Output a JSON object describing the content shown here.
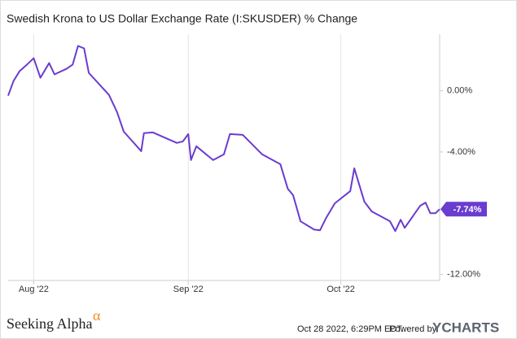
{
  "chart_data": {
    "type": "line",
    "title": "Swedish Krona to US Dollar Exchange Rate (I:SKUSDER) % Change",
    "x": [
      0,
      0.8,
      1.7,
      2.8,
      3.8,
      4.8,
      6.1,
      6.9,
      8.7,
      9.6,
      10.4,
      11.3,
      12,
      15,
      16.2,
      17.2,
      19.8,
      20.2,
      21.5,
      25.1,
      26,
      26.8,
      27.2,
      28,
      30.5,
      32.1,
      33,
      34.9,
      37.8,
      40.5,
      41.6,
      42.4,
      43.5,
      45.5,
      46.4,
      47.3,
      48.6,
      50.9,
      51.5,
      53,
      54.1,
      56.8,
      57.6,
      58.4,
      59,
      61.3,
      62.1,
      62.8,
      63.6,
      64.2
    ],
    "series": [
      {
        "name": "I:SKUSDER",
        "color": "#6a3ccf",
        "values": [
          -0.32,
          0.64,
          1.28,
          1.71,
          2.13,
          0.85,
          1.81,
          1.07,
          1.44,
          1.71,
          2.93,
          2.77,
          1.17,
          -0.27,
          -1.39,
          -2.67,
          -3.95,
          -2.77,
          -2.72,
          -3.41,
          -3.31,
          -2.83,
          -4.53,
          -3.63,
          -4.53,
          -4.16,
          -2.83,
          -2.88,
          -4.16,
          -4.8,
          -6.4,
          -6.83,
          -8.53,
          -9.07,
          -9.12,
          -8.32,
          -7.36,
          -6.56,
          -5.07,
          -7.25,
          -7.89,
          -8.53,
          -9.17,
          -8.43,
          -8.96,
          -7.52,
          -7.31,
          -8.0,
          -8.0,
          -7.74
        ],
        "value_labels": [
          null,
          null,
          null,
          null,
          null,
          null,
          null,
          null,
          null,
          null,
          null,
          null,
          null,
          null,
          null,
          null,
          null,
          null,
          null,
          null,
          null,
          null,
          null,
          null,
          null,
          null,
          null,
          null,
          null,
          null,
          null,
          null,
          null,
          null,
          null,
          null,
          null,
          null,
          null,
          null,
          null,
          null,
          null,
          null,
          null,
          null,
          null,
          null,
          null,
          "-7.74%"
        ]
      }
    ],
    "xlim": [
      0,
      64.2
    ],
    "xticks": [
      {
        "value": 3.8,
        "label": "Aug '22"
      },
      {
        "value": 26.8,
        "label": "Sep '22"
      },
      {
        "value": 49.5,
        "label": "Oct '22"
      }
    ],
    "ylim": [
      -12.4,
      3.7
    ],
    "yticks": [
      {
        "value": 0,
        "label": "0.00%"
      },
      {
        "value": -4,
        "label": "-4.00%"
      },
      {
        "value": -12,
        "label": "-12.00%"
      }
    ],
    "grid": true
  },
  "footer": {
    "brand": "Seeking Alpha",
    "brand_mark": "α",
    "timestamp": "Oct 28 2022, 6:29PM EDT.",
    "powered": "Powered by",
    "logo": "YCHARTS"
  }
}
